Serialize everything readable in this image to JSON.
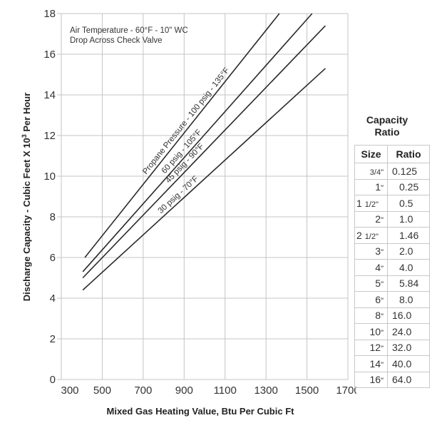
{
  "chart_data": {
    "type": "line",
    "title": "",
    "annotation": [
      "Air Temperature - 60°F - 10\" WC",
      "Drop Across Check Valve"
    ],
    "xlabel": "Mixed Gas Heating Value, Btu Per Cubic Ft",
    "ylabel_main": "Discharge Capacity - Cubic Feet X 10",
    "ylabel_sup": "3",
    "ylabel_tail": " Per Hour",
    "xlim": [
      300,
      1700
    ],
    "ylim": [
      0,
      18
    ],
    "x_ticks": [
      300,
      500,
      700,
      900,
      1100,
      1300,
      1500,
      1700
    ],
    "x_tick_labels": [
      "300",
      "500",
      "700",
      "900",
      "1100",
      "1300",
      "1500",
      "1700"
    ],
    "y_ticks": [
      0,
      2,
      4,
      6,
      8,
      10,
      12,
      14,
      16,
      18
    ],
    "y_tick_labels": [
      "0",
      "2",
      "4",
      "6",
      "8",
      "10",
      "12",
      "14",
      "16",
      "18"
    ],
    "grid": true,
    "series": [
      {
        "name": "Propane Pressure - 100 psig - 135°F",
        "x": [
          415,
          1365
        ],
        "y": [
          6.0,
          18.0
        ]
      },
      {
        "name": "60 psig - 105°F",
        "x": [
          405,
          1525
        ],
        "y": [
          5.3,
          18.0
        ]
      },
      {
        "name": "45 psig - 90°F",
        "x": [
          405,
          1590
        ],
        "y": [
          5.0,
          17.4
        ]
      },
      {
        "name": "30 psig - 70°F",
        "x": [
          405,
          1590
        ],
        "y": [
          4.4,
          15.3
        ]
      }
    ]
  },
  "capacity_ratio": {
    "title_line1": "Capacity",
    "title_line2": "Ratio",
    "headers": [
      "Size",
      "Ratio"
    ],
    "rows": [
      {
        "size_whole": "",
        "size_frac": "3/4",
        "size_unit": "\"",
        "ratio": "0.125"
      },
      {
        "size_whole": "1",
        "size_frac": "",
        "size_unit": "\"",
        "ratio": "0.25"
      },
      {
        "size_whole": "1 ",
        "size_frac": "1/2",
        "size_unit": "\"",
        "ratio": "0.5"
      },
      {
        "size_whole": "2",
        "size_frac": "",
        "size_unit": "\"",
        "ratio": "1.0"
      },
      {
        "size_whole": "2 ",
        "size_frac": "1/2",
        "size_unit": "\"",
        "ratio": "1.46"
      },
      {
        "size_whole": "3",
        "size_frac": "",
        "size_unit": "\"",
        "ratio": "2.0"
      },
      {
        "size_whole": "4",
        "size_frac": "",
        "size_unit": "\"",
        "ratio": "4.0"
      },
      {
        "size_whole": "5",
        "size_frac": "",
        "size_unit": "\"",
        "ratio": "5.84"
      },
      {
        "size_whole": "6",
        "size_frac": "",
        "size_unit": "\"",
        "ratio": "8.0"
      },
      {
        "size_whole": "8",
        "size_frac": "",
        "size_unit": "\"",
        "ratio": "16.0"
      },
      {
        "size_whole": "10",
        "size_frac": "",
        "size_unit": "\"",
        "ratio": "24.0"
      },
      {
        "size_whole": "12",
        "size_frac": "",
        "size_unit": "\"",
        "ratio": "32.0"
      },
      {
        "size_whole": "14",
        "size_frac": "",
        "size_unit": "\"",
        "ratio": "40.0"
      },
      {
        "size_whole": "16",
        "size_frac": "",
        "size_unit": "\"",
        "ratio": "64.0"
      }
    ]
  },
  "colors": {
    "grid": "#c4c4c4",
    "line": "#2a2a2a",
    "text": "#333333"
  }
}
